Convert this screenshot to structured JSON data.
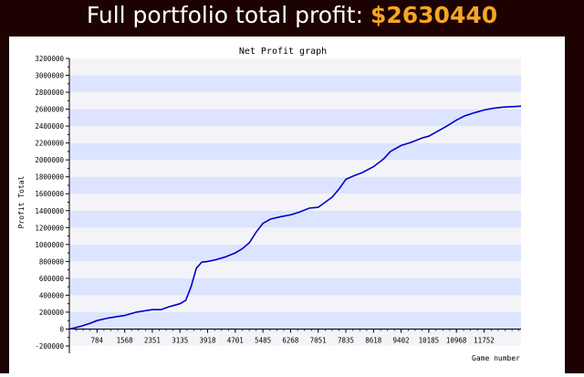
{
  "header": {
    "label": "Full portfolio total profit: ",
    "amount": "$2630440"
  },
  "chart_data": {
    "type": "line",
    "title": "Net Profit graph",
    "xlabel": "Game number",
    "ylabel": "Profit Total",
    "xlim": [
      0,
      12800
    ],
    "ylim": [
      -200000,
      3200000
    ],
    "xticks": [
      784,
      1568,
      2351,
      3135,
      3918,
      4701,
      5485,
      6268,
      7051,
      7835,
      8618,
      9402,
      10185,
      10968,
      11752
    ],
    "yticks": [
      -200000,
      0,
      200000,
      400000,
      600000,
      800000,
      1000000,
      1200000,
      1400000,
      1600000,
      1800000,
      2000000,
      2200000,
      2400000,
      2600000,
      2800000,
      3000000,
      3200000
    ],
    "grid": "horizontal bands",
    "line_color": "#0000cc",
    "band_color": "#dde4ff",
    "series": [
      {
        "x": [
          0,
          300,
          600,
          784,
          1100,
          1568,
          1900,
          2351,
          2600,
          2800,
          3135,
          3300,
          3450,
          3600,
          3750,
          3918,
          4150,
          4400,
          4701,
          4900,
          5100,
          5300,
          5485,
          5700,
          6000,
          6268,
          6500,
          6800,
          7051,
          7250,
          7450,
          7650,
          7835,
          8050,
          8300,
          8618,
          8900,
          9100,
          9402,
          9700,
          10000,
          10185,
          10400,
          10700,
          10968,
          11200,
          11500,
          11752,
          12000,
          12300,
          12560,
          12800
        ],
        "y": [
          0,
          30000,
          70000,
          100000,
          130000,
          160000,
          200000,
          230000,
          230000,
          260000,
          300000,
          340000,
          500000,
          720000,
          790000,
          800000,
          820000,
          850000,
          900000,
          950000,
          1020000,
          1150000,
          1250000,
          1300000,
          1330000,
          1350000,
          1380000,
          1430000,
          1440000,
          1500000,
          1560000,
          1660000,
          1770000,
          1810000,
          1850000,
          1920000,
          2010000,
          2100000,
          2170000,
          2210000,
          2260000,
          2280000,
          2330000,
          2400000,
          2470000,
          2520000,
          2560000,
          2590000,
          2610000,
          2625000,
          2630000,
          2635000
        ]
      }
    ]
  }
}
